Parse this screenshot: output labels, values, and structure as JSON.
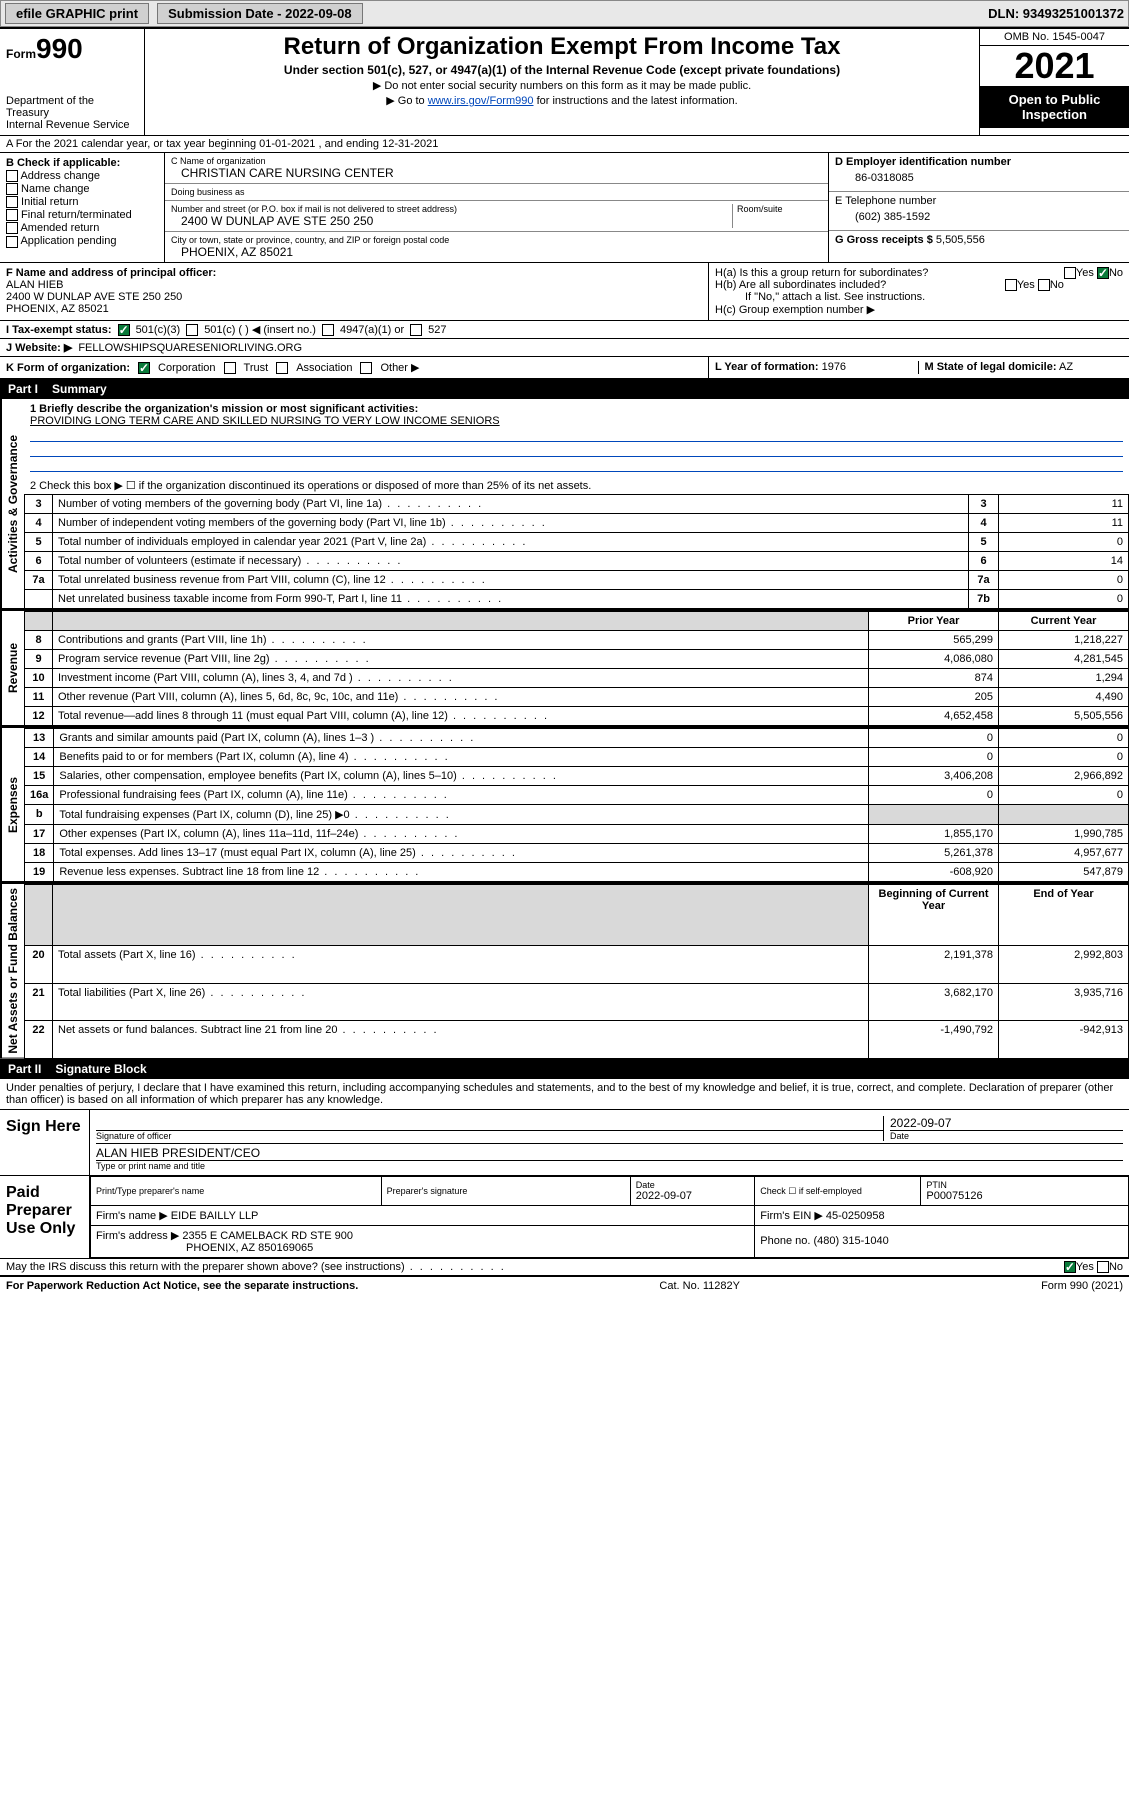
{
  "topbar": {
    "efile": "efile GRAPHIC print",
    "submission_label": "Submission Date - 2022-09-08",
    "dln": "DLN: 93493251001372"
  },
  "header": {
    "form_prefix": "Form",
    "form_number": "990",
    "dept": "Department of the Treasury",
    "irs": "Internal Revenue Service",
    "title": "Return of Organization Exempt From Income Tax",
    "subtitle": "Under section 501(c), 527, or 4947(a)(1) of the Internal Revenue Code (except private foundations)",
    "note1": "▶ Do not enter social security numbers on this form as it may be made public.",
    "note2_pre": "▶ Go to ",
    "note2_link": "www.irs.gov/Form990",
    "note2_post": " for instructions and the latest information.",
    "omb": "OMB No. 1545-0047",
    "year": "2021",
    "open_pub": "Open to Public Inspection"
  },
  "line_a": "A For the 2021 calendar year, or tax year beginning 01-01-2021   , and ending 12-31-2021",
  "section_b": {
    "title": "B Check if applicable:",
    "opts": [
      "Address change",
      "Name change",
      "Initial return",
      "Final return/terminated",
      "Amended return",
      "Application pending"
    ]
  },
  "section_c": {
    "name_lbl": "C Name of organization",
    "name": "CHRISTIAN CARE NURSING CENTER",
    "dba_lbl": "Doing business as",
    "dba": "",
    "addr_lbl": "Number and street (or P.O. box if mail is not delivered to street address)",
    "room_lbl": "Room/suite",
    "addr": "2400 W DUNLAP AVE STE 250 250",
    "city_lbl": "City or town, state or province, country, and ZIP or foreign postal code",
    "city": "PHOENIX, AZ  85021"
  },
  "section_d": {
    "ein_lbl": "D Employer identification number",
    "ein": "86-0318085",
    "tel_lbl": "E Telephone number",
    "tel": "(602) 385-1592",
    "gross_lbl": "G Gross receipts $",
    "gross": "5,505,556"
  },
  "section_f": {
    "lbl": "F Name and address of principal officer:",
    "name": "ALAN HIEB",
    "addr": "2400 W DUNLAP AVE STE 250 250",
    "city": "PHOENIX, AZ  85021"
  },
  "section_h": {
    "ha": "H(a)  Is this a group return for subordinates?",
    "ha_yes": "Yes",
    "ha_no": "No",
    "hb": "H(b)  Are all subordinates included?",
    "hb_note": "If \"No,\" attach a list. See instructions.",
    "hc": "H(c)  Group exemption number ▶"
  },
  "line_i": {
    "lbl": "I  Tax-exempt status:",
    "opt1": "501(c)(3)",
    "opt2": "501(c) (  ) ◀ (insert no.)",
    "opt3": "4947(a)(1) or",
    "opt4": "527"
  },
  "line_j": {
    "lbl": "J  Website: ▶",
    "val": "FELLOWSHIPSQUARESENIORLIVING.ORG"
  },
  "line_k": {
    "lbl": "K Form of organization:",
    "opts": [
      "Corporation",
      "Trust",
      "Association",
      "Other ▶"
    ]
  },
  "line_l": {
    "lbl": "L Year of formation:",
    "val": "1976"
  },
  "line_m": {
    "lbl": "M State of legal domicile:",
    "val": "AZ"
  },
  "part1": {
    "hdr_part": "Part I",
    "hdr_title": "Summary",
    "q1_lbl": "1  Briefly describe the organization's mission or most significant activities:",
    "q1_val": "PROVIDING LONG TERM CARE AND SKILLED NURSING TO VERY LOW INCOME SENIORS",
    "q2": "2   Check this box ▶ ☐  if the organization discontinued its operations or disposed of more than 25% of its net assets.",
    "side_gov": "Activities & Governance",
    "side_rev": "Revenue",
    "side_exp": "Expenses",
    "side_net": "Net Assets or Fund Balances",
    "col_prior": "Prior Year",
    "col_curr": "Current Year",
    "col_boy": "Beginning of Current Year",
    "col_eoy": "End of Year",
    "gov_rows": [
      {
        "n": "3",
        "d": "Number of voting members of the governing body (Part VI, line 1a)",
        "b": "3",
        "v": "11"
      },
      {
        "n": "4",
        "d": "Number of independent voting members of the governing body (Part VI, line 1b)",
        "b": "4",
        "v": "11"
      },
      {
        "n": "5",
        "d": "Total number of individuals employed in calendar year 2021 (Part V, line 2a)",
        "b": "5",
        "v": "0"
      },
      {
        "n": "6",
        "d": "Total number of volunteers (estimate if necessary)",
        "b": "6",
        "v": "14"
      },
      {
        "n": "7a",
        "d": "Total unrelated business revenue from Part VIII, column (C), line 12",
        "b": "7a",
        "v": "0"
      },
      {
        "n": "",
        "d": "Net unrelated business taxable income from Form 990-T, Part I, line 11",
        "b": "7b",
        "v": "0"
      }
    ],
    "rev_rows": [
      {
        "n": "8",
        "d": "Contributions and grants (Part VIII, line 1h)",
        "p": "565,299",
        "c": "1,218,227"
      },
      {
        "n": "9",
        "d": "Program service revenue (Part VIII, line 2g)",
        "p": "4,086,080",
        "c": "4,281,545"
      },
      {
        "n": "10",
        "d": "Investment income (Part VIII, column (A), lines 3, 4, and 7d )",
        "p": "874",
        "c": "1,294"
      },
      {
        "n": "11",
        "d": "Other revenue (Part VIII, column (A), lines 5, 6d, 8c, 9c, 10c, and 11e)",
        "p": "205",
        "c": "4,490"
      },
      {
        "n": "12",
        "d": "Total revenue—add lines 8 through 11 (must equal Part VIII, column (A), line 12)",
        "p": "4,652,458",
        "c": "5,505,556"
      }
    ],
    "exp_rows": [
      {
        "n": "13",
        "d": "Grants and similar amounts paid (Part IX, column (A), lines 1–3 )",
        "p": "0",
        "c": "0"
      },
      {
        "n": "14",
        "d": "Benefits paid to or for members (Part IX, column (A), line 4)",
        "p": "0",
        "c": "0"
      },
      {
        "n": "15",
        "d": "Salaries, other compensation, employee benefits (Part IX, column (A), lines 5–10)",
        "p": "3,406,208",
        "c": "2,966,892"
      },
      {
        "n": "16a",
        "d": "Professional fundraising fees (Part IX, column (A), line 11e)",
        "p": "0",
        "c": "0"
      },
      {
        "n": "b",
        "d": "Total fundraising expenses (Part IX, column (D), line 25) ▶0",
        "p": "",
        "c": "",
        "shade": true
      },
      {
        "n": "17",
        "d": "Other expenses (Part IX, column (A), lines 11a–11d, 11f–24e)",
        "p": "1,855,170",
        "c": "1,990,785"
      },
      {
        "n": "18",
        "d": "Total expenses. Add lines 13–17 (must equal Part IX, column (A), line 25)",
        "p": "5,261,378",
        "c": "4,957,677"
      },
      {
        "n": "19",
        "d": "Revenue less expenses. Subtract line 18 from line 12",
        "p": "-608,920",
        "c": "547,879"
      }
    ],
    "net_rows": [
      {
        "n": "20",
        "d": "Total assets (Part X, line 16)",
        "p": "2,191,378",
        "c": "2,992,803"
      },
      {
        "n": "21",
        "d": "Total liabilities (Part X, line 26)",
        "p": "3,682,170",
        "c": "3,935,716"
      },
      {
        "n": "22",
        "d": "Net assets or fund balances. Subtract line 21 from line 20",
        "p": "-1,490,792",
        "c": "-942,913"
      }
    ]
  },
  "part2": {
    "hdr_part": "Part II",
    "hdr_title": "Signature Block",
    "decl": "Under penalties of perjury, I declare that I have examined this return, including accompanying schedules and statements, and to the best of my knowledge and belief, it is true, correct, and complete. Declaration of preparer (other than officer) is based on all information of which preparer has any knowledge.",
    "sign_here": "Sign Here",
    "sig_officer_lbl": "Signature of officer",
    "date_lbl": "Date",
    "sig_date": "2022-09-07",
    "officer_name": "ALAN HIEB  PRESIDENT/CEO",
    "officer_name_lbl": "Type or print name and title",
    "paid_prep": "Paid Preparer Use Only",
    "pt_name_lbl": "Print/Type preparer's name",
    "pt_sig_lbl": "Preparer's signature",
    "pt_date_lbl": "Date",
    "pt_date": "2022-09-07",
    "pt_check_lbl": "Check ☐ if self-employed",
    "ptin_lbl": "PTIN",
    "ptin": "P00075126",
    "firm_name_lbl": "Firm's name    ▶",
    "firm_name": "EIDE BAILLY LLP",
    "firm_ein_lbl": "Firm's EIN ▶",
    "firm_ein": "45-0250958",
    "firm_addr_lbl": "Firm's address ▶",
    "firm_addr1": "2355 E CAMELBACK RD STE 900",
    "firm_addr2": "PHOENIX, AZ  850169065",
    "phone_lbl": "Phone no.",
    "phone": "(480) 315-1040",
    "discuss": "May the IRS discuss this return with the preparer shown above? (see instructions)",
    "yes": "Yes",
    "no": "No"
  },
  "footer": {
    "pra": "For Paperwork Reduction Act Notice, see the separate instructions.",
    "cat": "Cat. No. 11282Y",
    "form": "Form 990 (2021)"
  },
  "colors": {
    "link": "#0047bb",
    "check_green": "#0a7a3a",
    "shade": "#d9d9d9"
  }
}
